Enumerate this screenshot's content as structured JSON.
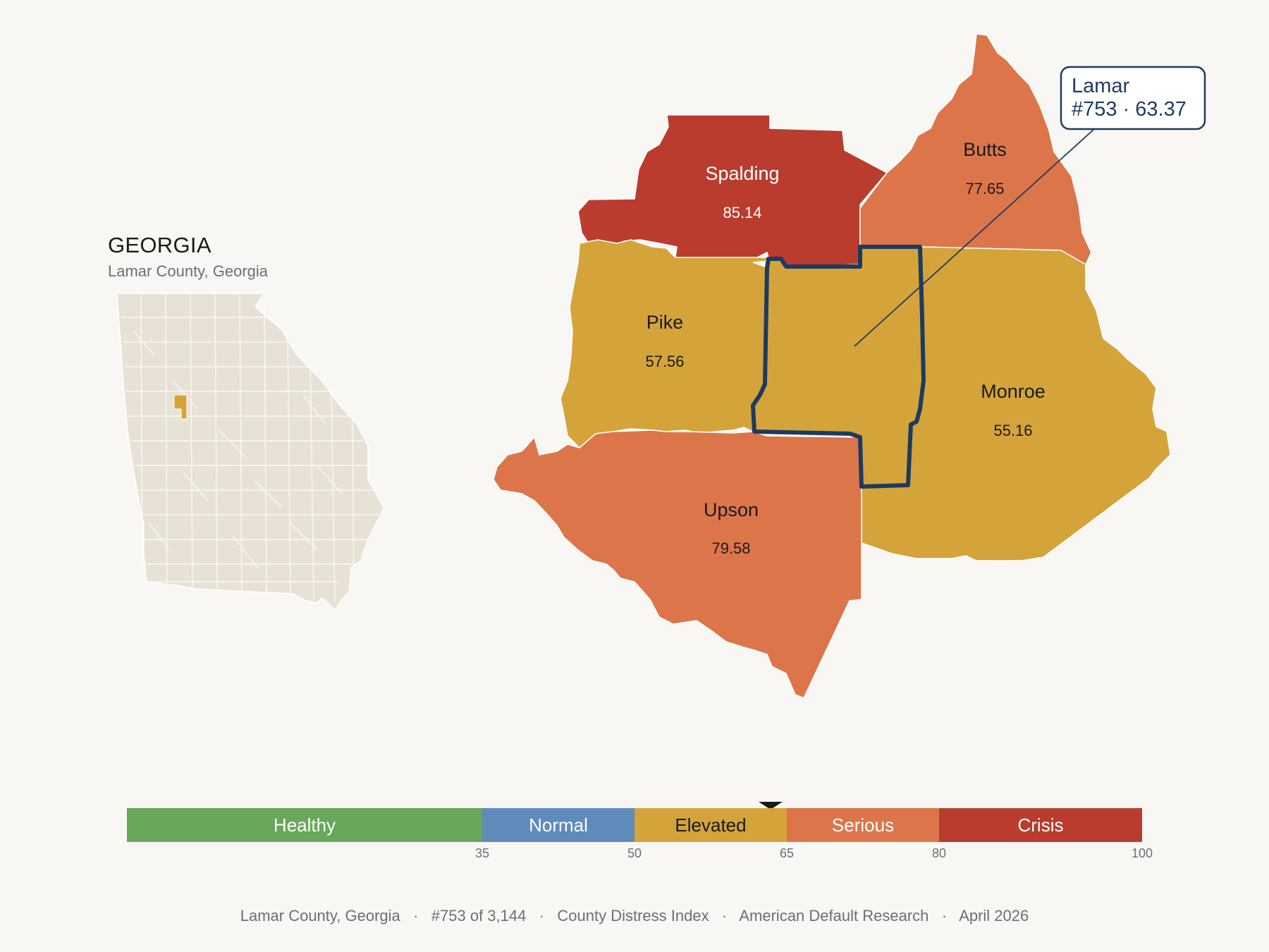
{
  "inset": {
    "title": "GEORGIA",
    "subtitle": "Lamar County, Georgia"
  },
  "counties": [
    {
      "name": "Spalding",
      "score": "85.14",
      "category": "Crisis"
    },
    {
      "name": "Butts",
      "score": "77.65",
      "category": "Serious"
    },
    {
      "name": "Pike",
      "score": "57.56",
      "category": "Elevated"
    },
    {
      "name": "Monroe",
      "score": "55.16",
      "category": "Elevated"
    },
    {
      "name": "Upson",
      "score": "79.58",
      "category": "Serious"
    },
    {
      "name": "Lamar",
      "score": "63.37",
      "category": "Elevated",
      "highlighted": true
    }
  ],
  "callout": {
    "line1": "Lamar",
    "line2": "#753 · 63.37"
  },
  "legend": {
    "segments": [
      {
        "label": "Healthy",
        "from": 0,
        "to": 35,
        "color": "#67a85a",
        "text_color": "#ffffff"
      },
      {
        "label": "Normal",
        "from": 35,
        "to": 50,
        "color": "#5f8bbb",
        "text_color": "#ffffff"
      },
      {
        "label": "Elevated",
        "from": 50,
        "to": 65,
        "color": "#d4a43b",
        "text_color": "#1a1a1a"
      },
      {
        "label": "Serious",
        "from": 65,
        "to": 80,
        "color": "#dc764a",
        "text_color": "#ffffff"
      },
      {
        "label": "Crisis",
        "from": 80,
        "to": 100,
        "color": "#b93c2e",
        "text_color": "#ffffff"
      }
    ],
    "ticks": [
      "35",
      "50",
      "65",
      "80",
      "100"
    ],
    "marker_value": 63.37
  },
  "colors": {
    "crisis": "#b93c2e",
    "serious": "#dc764a",
    "elevated": "#d4a43b",
    "highlight_outline": "#1f3a5f",
    "state_fill": "#e8e2d6"
  },
  "footer": {
    "county": "Lamar County, Georgia",
    "rank": "#753 of 3,144",
    "index": "County Distress Index",
    "source": "American Default Research",
    "date": "April 2026",
    "separator": "·"
  }
}
